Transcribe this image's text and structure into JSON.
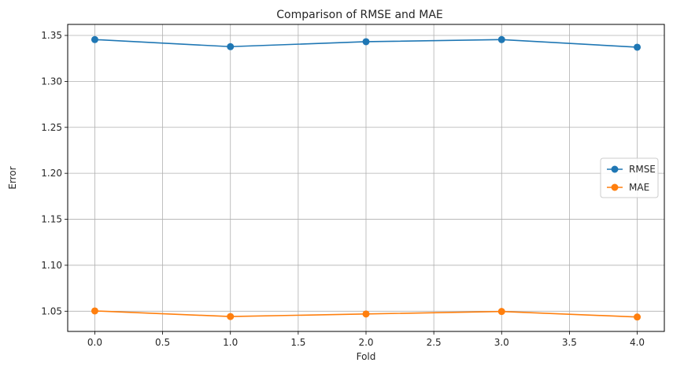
{
  "chart_data": {
    "type": "line",
    "title": "Comparison of RMSE and MAE",
    "xlabel": "Fold",
    "ylabel": "Error",
    "x": [
      0,
      1,
      2,
      3,
      4
    ],
    "xlim": [
      -0.2,
      4.2
    ],
    "ylim": [
      1.028,
      1.362
    ],
    "xticks": [
      0.0,
      0.5,
      1.0,
      1.5,
      2.0,
      2.5,
      3.0,
      3.5,
      4.0
    ],
    "xtick_labels": [
      "0.0",
      "0.5",
      "1.0",
      "1.5",
      "2.0",
      "2.5",
      "3.0",
      "3.5",
      "4.0"
    ],
    "yticks": [
      1.05,
      1.1,
      1.15,
      1.2,
      1.25,
      1.3,
      1.35
    ],
    "ytick_labels": [
      "1.05",
      "1.10",
      "1.15",
      "1.20",
      "1.25",
      "1.30",
      "1.35"
    ],
    "grid": true,
    "legend_position": "center-right",
    "series": [
      {
        "name": "RMSE",
        "color": "#1f77b4",
        "marker": "circle",
        "values": [
          1.3455,
          1.3378,
          1.3432,
          1.3455,
          1.3372
        ]
      },
      {
        "name": "MAE",
        "color": "#ff7f0e",
        "marker": "circle",
        "values": [
          1.0503,
          1.0442,
          1.047,
          1.0497,
          1.0437
        ]
      }
    ]
  }
}
